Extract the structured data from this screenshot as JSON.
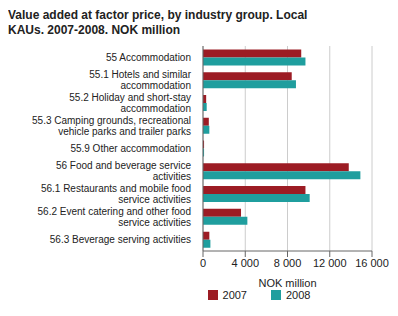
{
  "chart_data": {
    "type": "bar",
    "orientation": "horizontal",
    "title": "Value added at factor price, by industry group. Local KAUs. 2007-2008. NOK million",
    "x_label": "NOK million",
    "categories": [
      "55 Accommodation",
      "55.1 Hotels and similar accommodation",
      "55.2 Holiday and short-stay accommodation",
      "55.3 Camping grounds, recreational vehicle parks and trailer parks",
      "55.9 Other accommodation",
      "56 Food and beverage service activities",
      "56.1 Restaurants and mobile food service activities",
      "56.2 Event catering and other food service activities",
      "56.3 Beverage serving activities"
    ],
    "series": [
      {
        "name": "2007",
        "color": "#9c1c24",
        "values": [
          9300,
          8400,
          300,
          550,
          100,
          13800,
          9700,
          3600,
          600
        ]
      },
      {
        "name": "2008",
        "color": "#1f9e9e",
        "values": [
          9700,
          8800,
          350,
          600,
          100,
          14900,
          10100,
          4200,
          700
        ]
      }
    ],
    "xlim": [
      0,
      16000
    ],
    "xticks": [
      0,
      {
        "value": 4000,
        "label": "4 000"
      },
      {
        "value": 8000,
        "label": "8 000"
      },
      {
        "value": 12000,
        "label": "12 000"
      },
      {
        "value": 16000,
        "label": "16 000"
      }
    ],
    "grid": true,
    "legend": "bottom"
  }
}
